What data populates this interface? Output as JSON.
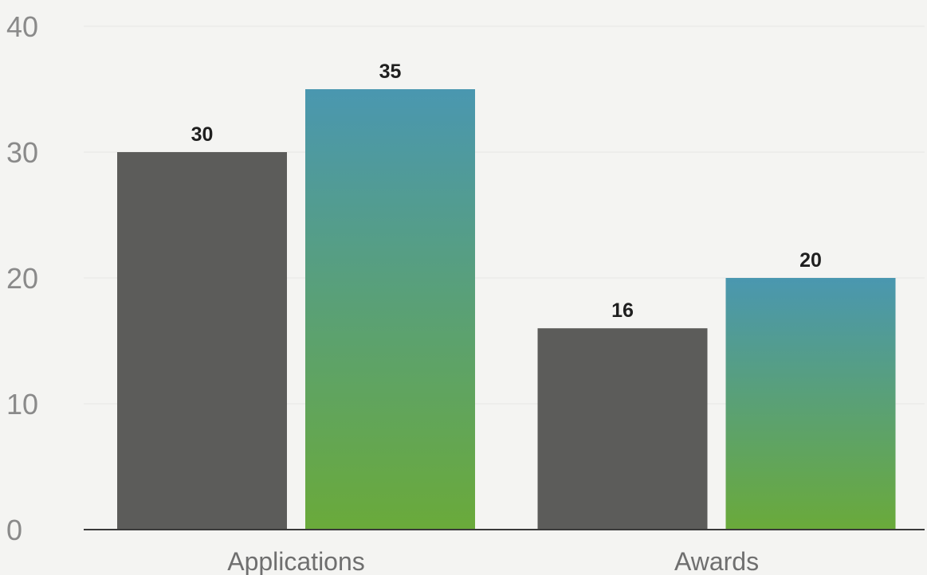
{
  "chart_data": {
    "type": "bar",
    "title": "",
    "xlabel": "",
    "ylabel": "",
    "categories": [
      "Applications",
      "Awards"
    ],
    "series": [
      {
        "values": [
          30,
          16
        ],
        "color": "#5c5c5a"
      },
      {
        "values": [
          35,
          20
        ],
        "color_top": "#4a97b0",
        "color_bottom": "#6aaa3a"
      }
    ],
    "ylim": [
      0,
      40
    ],
    "yticks": [
      "0",
      "10",
      "20",
      "30",
      "40"
    ],
    "data_labels": [
      [
        "30",
        "16"
      ],
      [
        "35",
        "20"
      ]
    ],
    "grid": true,
    "legend": "none"
  }
}
